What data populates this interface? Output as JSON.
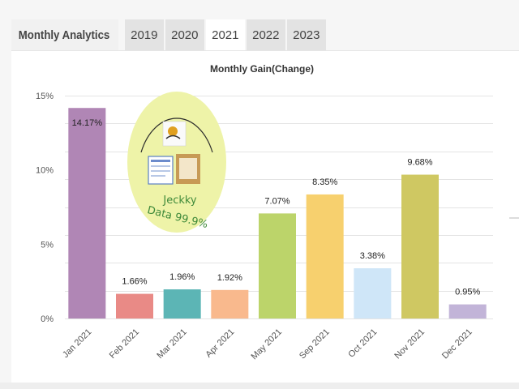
{
  "tabs": {
    "title": "Monthly Analytics",
    "years": [
      "2019",
      "2020",
      "2021",
      "2022",
      "2023"
    ],
    "active": "2021"
  },
  "watermark": {
    "name": "Jeckky",
    "tagline": "Data 99.9%"
  },
  "colors": {
    "bars": [
      "#b086b5",
      "#e98a86",
      "#5cb5b5",
      "#f9b98d",
      "#bcd46a",
      "#f7d06e",
      "#cfe6f8",
      "#cfc862",
      "#c2b4d8"
    ],
    "grid": "#e4e4e4",
    "watermark_fill": "#eef3a8"
  },
  "chart_data": {
    "type": "bar",
    "title": "Monthly Gain(Change)",
    "categories": [
      "Jan 2021",
      "Feb 2021",
      "Mar 2021",
      "Apr 2021",
      "May 2021",
      "Sep 2021",
      "Oct 2021",
      "Nov 2021",
      "Dec 2021"
    ],
    "values": [
      14.17,
      1.66,
      1.96,
      1.92,
      7.07,
      8.35,
      3.38,
      9.68,
      0.95
    ],
    "value_labels": [
      "14.17%",
      "1.66%",
      "1.96%",
      "1.92%",
      "7.07%",
      "8.35%",
      "3.38%",
      "9.68%",
      "0.95%"
    ],
    "y_ticks": [
      "0%",
      "5%",
      "10%",
      "15%"
    ],
    "y_tick_values": [
      0,
      5,
      10,
      15
    ],
    "ylim": [
      0,
      15
    ],
    "grid": true,
    "legend": "none"
  }
}
